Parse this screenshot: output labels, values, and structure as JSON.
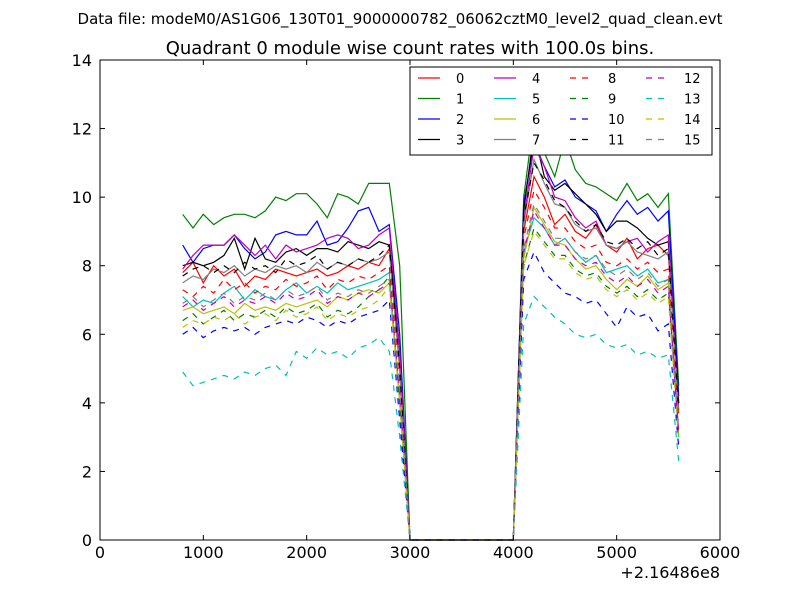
{
  "suptitle": "Data file: modeM0/AS1G06_130T01_9000000782_06062cztM0_level2_quad_clean.evt",
  "chart_data": {
    "type": "line",
    "title": "Quadrant 0 module wise count rates with 100.0s bins.",
    "xlabel": "",
    "ylabel": "",
    "x_offset_label": "+2.16486e8",
    "xlim": [
      0,
      6000
    ],
    "ylim": [
      0,
      14
    ],
    "xticks": [
      0,
      1000,
      2000,
      3000,
      4000,
      5000,
      6000
    ],
    "yticks": [
      0,
      2,
      4,
      6,
      8,
      10,
      12,
      14
    ],
    "grid": false,
    "legend_position": "top-right",
    "x": [
      800,
      900,
      1000,
      1100,
      1200,
      1300,
      1400,
      1500,
      1600,
      1700,
      1800,
      1900,
      2000,
      2100,
      2200,
      2300,
      2400,
      2500,
      2600,
      2700,
      2800,
      2900,
      3000,
      3100,
      3200,
      3300,
      3400,
      3500,
      3600,
      3700,
      3800,
      3900,
      4000,
      4100,
      4200,
      4300,
      4400,
      4500,
      4600,
      4700,
      4800,
      4900,
      5000,
      5100,
      5200,
      5300,
      5400,
      5500,
      5600
    ],
    "series": [
      {
        "name": "0",
        "color": "#ff0000",
        "dash": "solid",
        "values": [
          7.8,
          8.1,
          7.5,
          8.0,
          7.7,
          7.9,
          7.4,
          7.7,
          7.6,
          7.9,
          7.8,
          7.7,
          7.8,
          7.9,
          7.7,
          7.8,
          8.0,
          7.9,
          8.1,
          8.0,
          8.5,
          5.0,
          0.0,
          0.0,
          0.0,
          0.0,
          0.0,
          0.0,
          0.0,
          0.0,
          0.0,
          0.0,
          0.0,
          9.0,
          10.6,
          10.0,
          9.2,
          9.5,
          9.0,
          8.8,
          9.2,
          8.6,
          8.4,
          8.8,
          8.2,
          8.5,
          8.6,
          8.3,
          4.0
        ]
      },
      {
        "name": "1",
        "color": "#008000",
        "dash": "solid",
        "values": [
          9.5,
          9.1,
          9.5,
          9.2,
          9.4,
          9.5,
          9.5,
          9.4,
          9.6,
          10.0,
          9.9,
          10.1,
          10.1,
          9.8,
          9.4,
          10.1,
          10.0,
          9.8,
          10.4,
          10.4,
          10.4,
          8.0,
          0.0,
          0.0,
          0.0,
          0.0,
          0.0,
          0.0,
          0.0,
          0.0,
          0.0,
          0.0,
          0.0,
          10.0,
          12.3,
          11.3,
          10.6,
          11.7,
          10.8,
          10.4,
          10.3,
          10.1,
          9.9,
          10.4,
          9.9,
          10.1,
          9.7,
          10.1,
          4.5
        ]
      },
      {
        "name": "2",
        "color": "#0000ff",
        "dash": "solid",
        "values": [
          8.6,
          8.1,
          8.5,
          8.6,
          8.6,
          8.9,
          8.5,
          8.2,
          8.4,
          8.9,
          9.0,
          8.9,
          8.9,
          9.3,
          8.6,
          8.7,
          9.1,
          9.6,
          9.7,
          9.0,
          9.2,
          6.0,
          0.0,
          0.0,
          0.0,
          0.0,
          0.0,
          0.0,
          0.0,
          0.0,
          0.0,
          0.0,
          0.0,
          9.8,
          11.6,
          10.9,
          10.3,
          10.5,
          10.0,
          9.8,
          9.6,
          9.0,
          9.5,
          9.9,
          9.5,
          9.7,
          9.3,
          9.6,
          4.2
        ]
      },
      {
        "name": "3",
        "color": "#000000",
        "dash": "solid",
        "values": [
          8.0,
          8.1,
          8.0,
          8.1,
          8.3,
          8.8,
          7.9,
          8.8,
          8.2,
          8.1,
          8.4,
          8.5,
          8.3,
          8.5,
          8.5,
          8.4,
          8.7,
          8.6,
          8.5,
          8.7,
          8.6,
          5.5,
          0.0,
          0.0,
          0.0,
          0.0,
          0.0,
          0.0,
          0.0,
          0.0,
          0.0,
          0.0,
          0.0,
          9.6,
          11.9,
          10.6,
          10.2,
          10.4,
          10.1,
          9.8,
          9.5,
          9.0,
          9.3,
          9.3,
          9.1,
          8.8,
          8.6,
          8.7,
          4.0
        ]
      },
      {
        "name": "4",
        "color": "#bf00bf",
        "dash": "solid",
        "values": [
          7.9,
          8.3,
          8.6,
          8.6,
          8.6,
          8.9,
          8.6,
          8.3,
          8.6,
          8.2,
          8.6,
          8.4,
          8.5,
          8.6,
          8.8,
          8.9,
          8.8,
          8.5,
          8.6,
          8.9,
          9.1,
          5.5,
          0.0,
          0.0,
          0.0,
          0.0,
          0.0,
          0.0,
          0.0,
          0.0,
          0.0,
          0.0,
          0.0,
          9.3,
          11.5,
          10.9,
          10.0,
          9.9,
          9.4,
          9.1,
          9.3,
          8.6,
          8.5,
          8.7,
          8.8,
          8.4,
          8.7,
          8.9,
          3.8
        ]
      },
      {
        "name": "5",
        "color": "#00bfbf",
        "dash": "solid",
        "values": [
          7.1,
          6.8,
          7.0,
          6.9,
          7.2,
          7.4,
          7.0,
          7.3,
          7.1,
          7.0,
          7.3,
          7.5,
          7.2,
          7.4,
          7.2,
          7.5,
          7.3,
          7.4,
          7.5,
          7.6,
          7.8,
          4.0,
          0.0,
          0.0,
          0.0,
          0.0,
          0.0,
          0.0,
          0.0,
          0.0,
          0.0,
          0.0,
          0.0,
          8.4,
          9.4,
          9.1,
          8.6,
          8.8,
          8.4,
          8.1,
          8.3,
          7.8,
          7.9,
          8.0,
          7.7,
          7.9,
          7.5,
          7.6,
          3.0
        ]
      },
      {
        "name": "6",
        "color": "#bfbf00",
        "dash": "solid",
        "values": [
          6.7,
          6.8,
          6.6,
          6.7,
          6.8,
          6.6,
          6.9,
          6.7,
          6.8,
          6.7,
          6.9,
          6.8,
          6.9,
          7.0,
          6.8,
          7.1,
          7.0,
          7.2,
          7.3,
          7.2,
          7.5,
          4.2,
          0.0,
          0.0,
          0.0,
          0.0,
          0.0,
          0.0,
          0.0,
          0.0,
          0.0,
          0.0,
          0.0,
          8.2,
          9.7,
          9.2,
          8.7,
          8.6,
          8.2,
          7.9,
          8.0,
          7.6,
          7.3,
          7.6,
          7.4,
          7.7,
          7.3,
          7.5,
          3.2
        ]
      },
      {
        "name": "7",
        "color": "#808080",
        "dash": "solid",
        "values": [
          7.5,
          7.7,
          7.6,
          7.9,
          7.8,
          8.0,
          7.7,
          7.9,
          7.8,
          8.0,
          7.9,
          8.0,
          7.8,
          8.1,
          7.9,
          8.1,
          8.0,
          8.2,
          8.1,
          8.2,
          8.4,
          5.0,
          0.0,
          0.0,
          0.0,
          0.0,
          0.0,
          0.0,
          0.0,
          0.0,
          0.0,
          0.0,
          0.0,
          9.2,
          11.1,
          10.4,
          9.8,
          9.7,
          9.2,
          9.0,
          9.1,
          8.6,
          8.5,
          8.7,
          8.4,
          8.3,
          8.2,
          8.4,
          3.7
        ]
      },
      {
        "name": "8",
        "color": "#ff0000",
        "dash": "dashed",
        "values": [
          7.3,
          7.1,
          7.4,
          7.2,
          7.6,
          7.3,
          7.5,
          7.2,
          7.4,
          7.3,
          7.6,
          7.4,
          7.5,
          7.7,
          7.3,
          7.6,
          7.5,
          7.7,
          7.6,
          7.8,
          8.0,
          4.5,
          0.0,
          0.0,
          0.0,
          0.0,
          0.0,
          0.0,
          0.0,
          0.0,
          0.0,
          0.0,
          0.0,
          8.8,
          10.2,
          9.7,
          9.1,
          9.1,
          8.7,
          8.5,
          8.6,
          8.1,
          8.0,
          8.2,
          7.9,
          8.1,
          7.8,
          7.9,
          3.5
        ]
      },
      {
        "name": "9",
        "color": "#008000",
        "dash": "dashed",
        "values": [
          6.4,
          6.6,
          6.3,
          6.5,
          6.7,
          6.4,
          6.6,
          6.5,
          6.7,
          6.5,
          6.8,
          6.6,
          6.7,
          6.9,
          6.5,
          6.7,
          6.6,
          6.8,
          7.1,
          7.3,
          7.7,
          4.0,
          0.0,
          0.0,
          0.0,
          0.0,
          0.0,
          0.0,
          0.0,
          0.0,
          0.0,
          0.0,
          0.0,
          8.0,
          9.1,
          8.7,
          8.3,
          8.3,
          7.9,
          7.7,
          7.8,
          7.4,
          7.2,
          7.4,
          7.1,
          7.3,
          7.0,
          7.2,
          3.0
        ]
      },
      {
        "name": "10",
        "color": "#0000ff",
        "dash": "dashed",
        "values": [
          6.0,
          6.2,
          5.9,
          6.1,
          6.2,
          6.1,
          6.2,
          6.0,
          6.2,
          6.3,
          6.4,
          6.3,
          6.5,
          6.4,
          6.2,
          6.4,
          6.3,
          6.5,
          6.6,
          6.7,
          7.0,
          3.5,
          0.0,
          0.0,
          0.0,
          0.0,
          0.0,
          0.0,
          0.0,
          0.0,
          0.0,
          0.0,
          0.0,
          7.6,
          8.4,
          7.8,
          7.5,
          7.2,
          7.1,
          6.9,
          7.0,
          6.6,
          6.2,
          6.8,
          6.5,
          6.6,
          6.1,
          6.3,
          2.7
        ]
      },
      {
        "name": "11",
        "color": "#000000",
        "dash": "dashed",
        "values": [
          7.7,
          7.9,
          8.0,
          7.8,
          8.0,
          7.8,
          8.1,
          7.9,
          8.0,
          7.8,
          8.2,
          8.0,
          8.1,
          8.3,
          7.9,
          8.1,
          8.0,
          8.2,
          8.1,
          8.3,
          8.6,
          5.0,
          0.0,
          0.0,
          0.0,
          0.0,
          0.0,
          0.0,
          0.0,
          0.0,
          0.0,
          0.0,
          0.0,
          9.4,
          11.0,
          10.5,
          9.9,
          9.7,
          9.3,
          9.0,
          9.2,
          8.7,
          8.6,
          8.8,
          8.5,
          8.7,
          8.3,
          8.5,
          3.8
        ]
      },
      {
        "name": "12",
        "color": "#bf00bf",
        "dash": "dashed",
        "values": [
          6.8,
          7.0,
          6.7,
          6.9,
          7.1,
          6.8,
          7.0,
          6.9,
          7.1,
          6.9,
          7.2,
          7.0,
          7.1,
          7.3,
          6.9,
          7.1,
          7.0,
          7.2,
          7.1,
          7.3,
          7.5,
          4.3,
          0.0,
          0.0,
          0.0,
          0.0,
          0.0,
          0.0,
          0.0,
          0.0,
          0.0,
          0.0,
          0.0,
          8.4,
          9.6,
          9.1,
          8.6,
          8.6,
          8.2,
          8.0,
          8.1,
          7.7,
          7.5,
          7.7,
          7.4,
          7.6,
          7.2,
          7.4,
          3.1
        ]
      },
      {
        "name": "13",
        "color": "#00bfbf",
        "dash": "dashed",
        "values": [
          4.9,
          4.5,
          4.6,
          4.7,
          4.8,
          4.7,
          4.9,
          4.8,
          5.0,
          5.1,
          4.8,
          5.5,
          5.3,
          5.6,
          5.4,
          5.5,
          5.3,
          5.6,
          5.7,
          5.9,
          5.5,
          3.0,
          0.0,
          0.0,
          0.0,
          0.0,
          0.0,
          0.0,
          0.0,
          0.0,
          0.0,
          0.0,
          0.0,
          6.3,
          7.1,
          6.8,
          6.5,
          6.3,
          6.0,
          5.9,
          6.0,
          5.7,
          5.6,
          5.7,
          5.4,
          5.5,
          5.3,
          5.4,
          2.3
        ]
      },
      {
        "name": "14",
        "color": "#bfbf00",
        "dash": "dashed",
        "values": [
          6.2,
          6.4,
          6.3,
          6.5,
          6.4,
          6.6,
          6.3,
          6.5,
          6.6,
          6.4,
          6.7,
          6.5,
          6.6,
          6.8,
          6.4,
          6.6,
          6.5,
          6.7,
          6.8,
          7.0,
          7.4,
          4.0,
          0.0,
          0.0,
          0.0,
          0.0,
          0.0,
          0.0,
          0.0,
          0.0,
          0.0,
          0.0,
          0.0,
          8.0,
          9.0,
          8.6,
          8.2,
          8.2,
          7.8,
          7.6,
          7.7,
          7.3,
          7.1,
          7.3,
          7.0,
          7.2,
          6.9,
          7.1,
          2.9
        ]
      },
      {
        "name": "15",
        "color": "#808080",
        "dash": "dashed",
        "values": [
          6.9,
          7.1,
          6.8,
          7.0,
          7.2,
          6.9,
          7.1,
          7.0,
          7.2,
          7.0,
          7.3,
          7.1,
          7.2,
          7.4,
          7.0,
          7.2,
          7.1,
          7.3,
          7.2,
          7.4,
          7.6,
          4.4,
          0.0,
          0.0,
          0.0,
          0.0,
          0.0,
          0.0,
          0.0,
          0.0,
          0.0,
          0.0,
          0.0,
          8.5,
          9.8,
          9.3,
          8.8,
          8.8,
          8.4,
          8.2,
          8.3,
          7.9,
          7.7,
          7.9,
          7.6,
          7.8,
          7.4,
          7.6,
          3.2
        ]
      }
    ]
  }
}
